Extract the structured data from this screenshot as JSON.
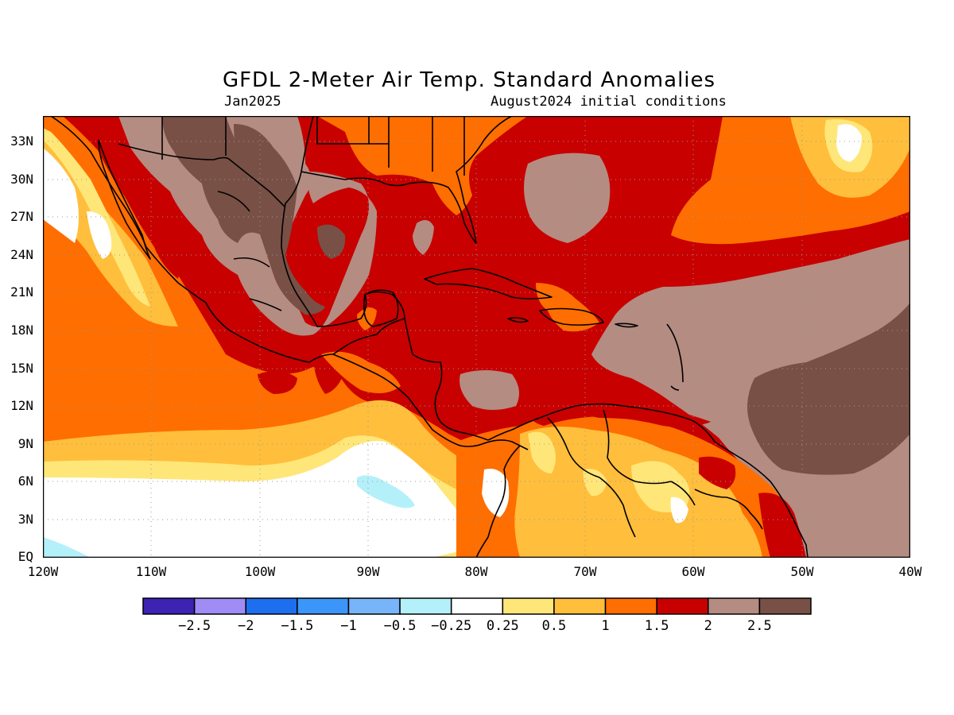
{
  "header": {
    "title": "GFDL 2-Meter Air Temp. Standard Anomalies",
    "valid_month": "Jan2025",
    "init_conditions": "August2024 initial conditions"
  },
  "map": {
    "lon_range": [
      -120,
      -40
    ],
    "lat_range": [
      0,
      35
    ],
    "lat_ticks": [
      "33N",
      "30N",
      "27N",
      "24N",
      "21N",
      "18N",
      "15N",
      "12N",
      "9N",
      "6N",
      "3N",
      "EQ"
    ],
    "lon_ticks": [
      "120W",
      "110W",
      "100W",
      "90W",
      "80W",
      "70W",
      "60W",
      "50W",
      "40W"
    ],
    "grid": true
  },
  "legend": {
    "colors": [
      "#3c23b4",
      "#9f8cf5",
      "#1e6ef0",
      "#3c96fa",
      "#78b4fa",
      "#b4f0fa",
      "#ffffff",
      "#ffe678",
      "#ffbe3c",
      "#ff6e00",
      "#c80000",
      "#b48c82",
      "#785046"
    ],
    "labels": [
      "-2.5",
      "-2",
      "-1.5",
      "-1",
      "-0.5",
      "-0.25",
      "0.25",
      "0.5",
      "1",
      "1.5",
      "2",
      "2.5"
    ]
  }
}
